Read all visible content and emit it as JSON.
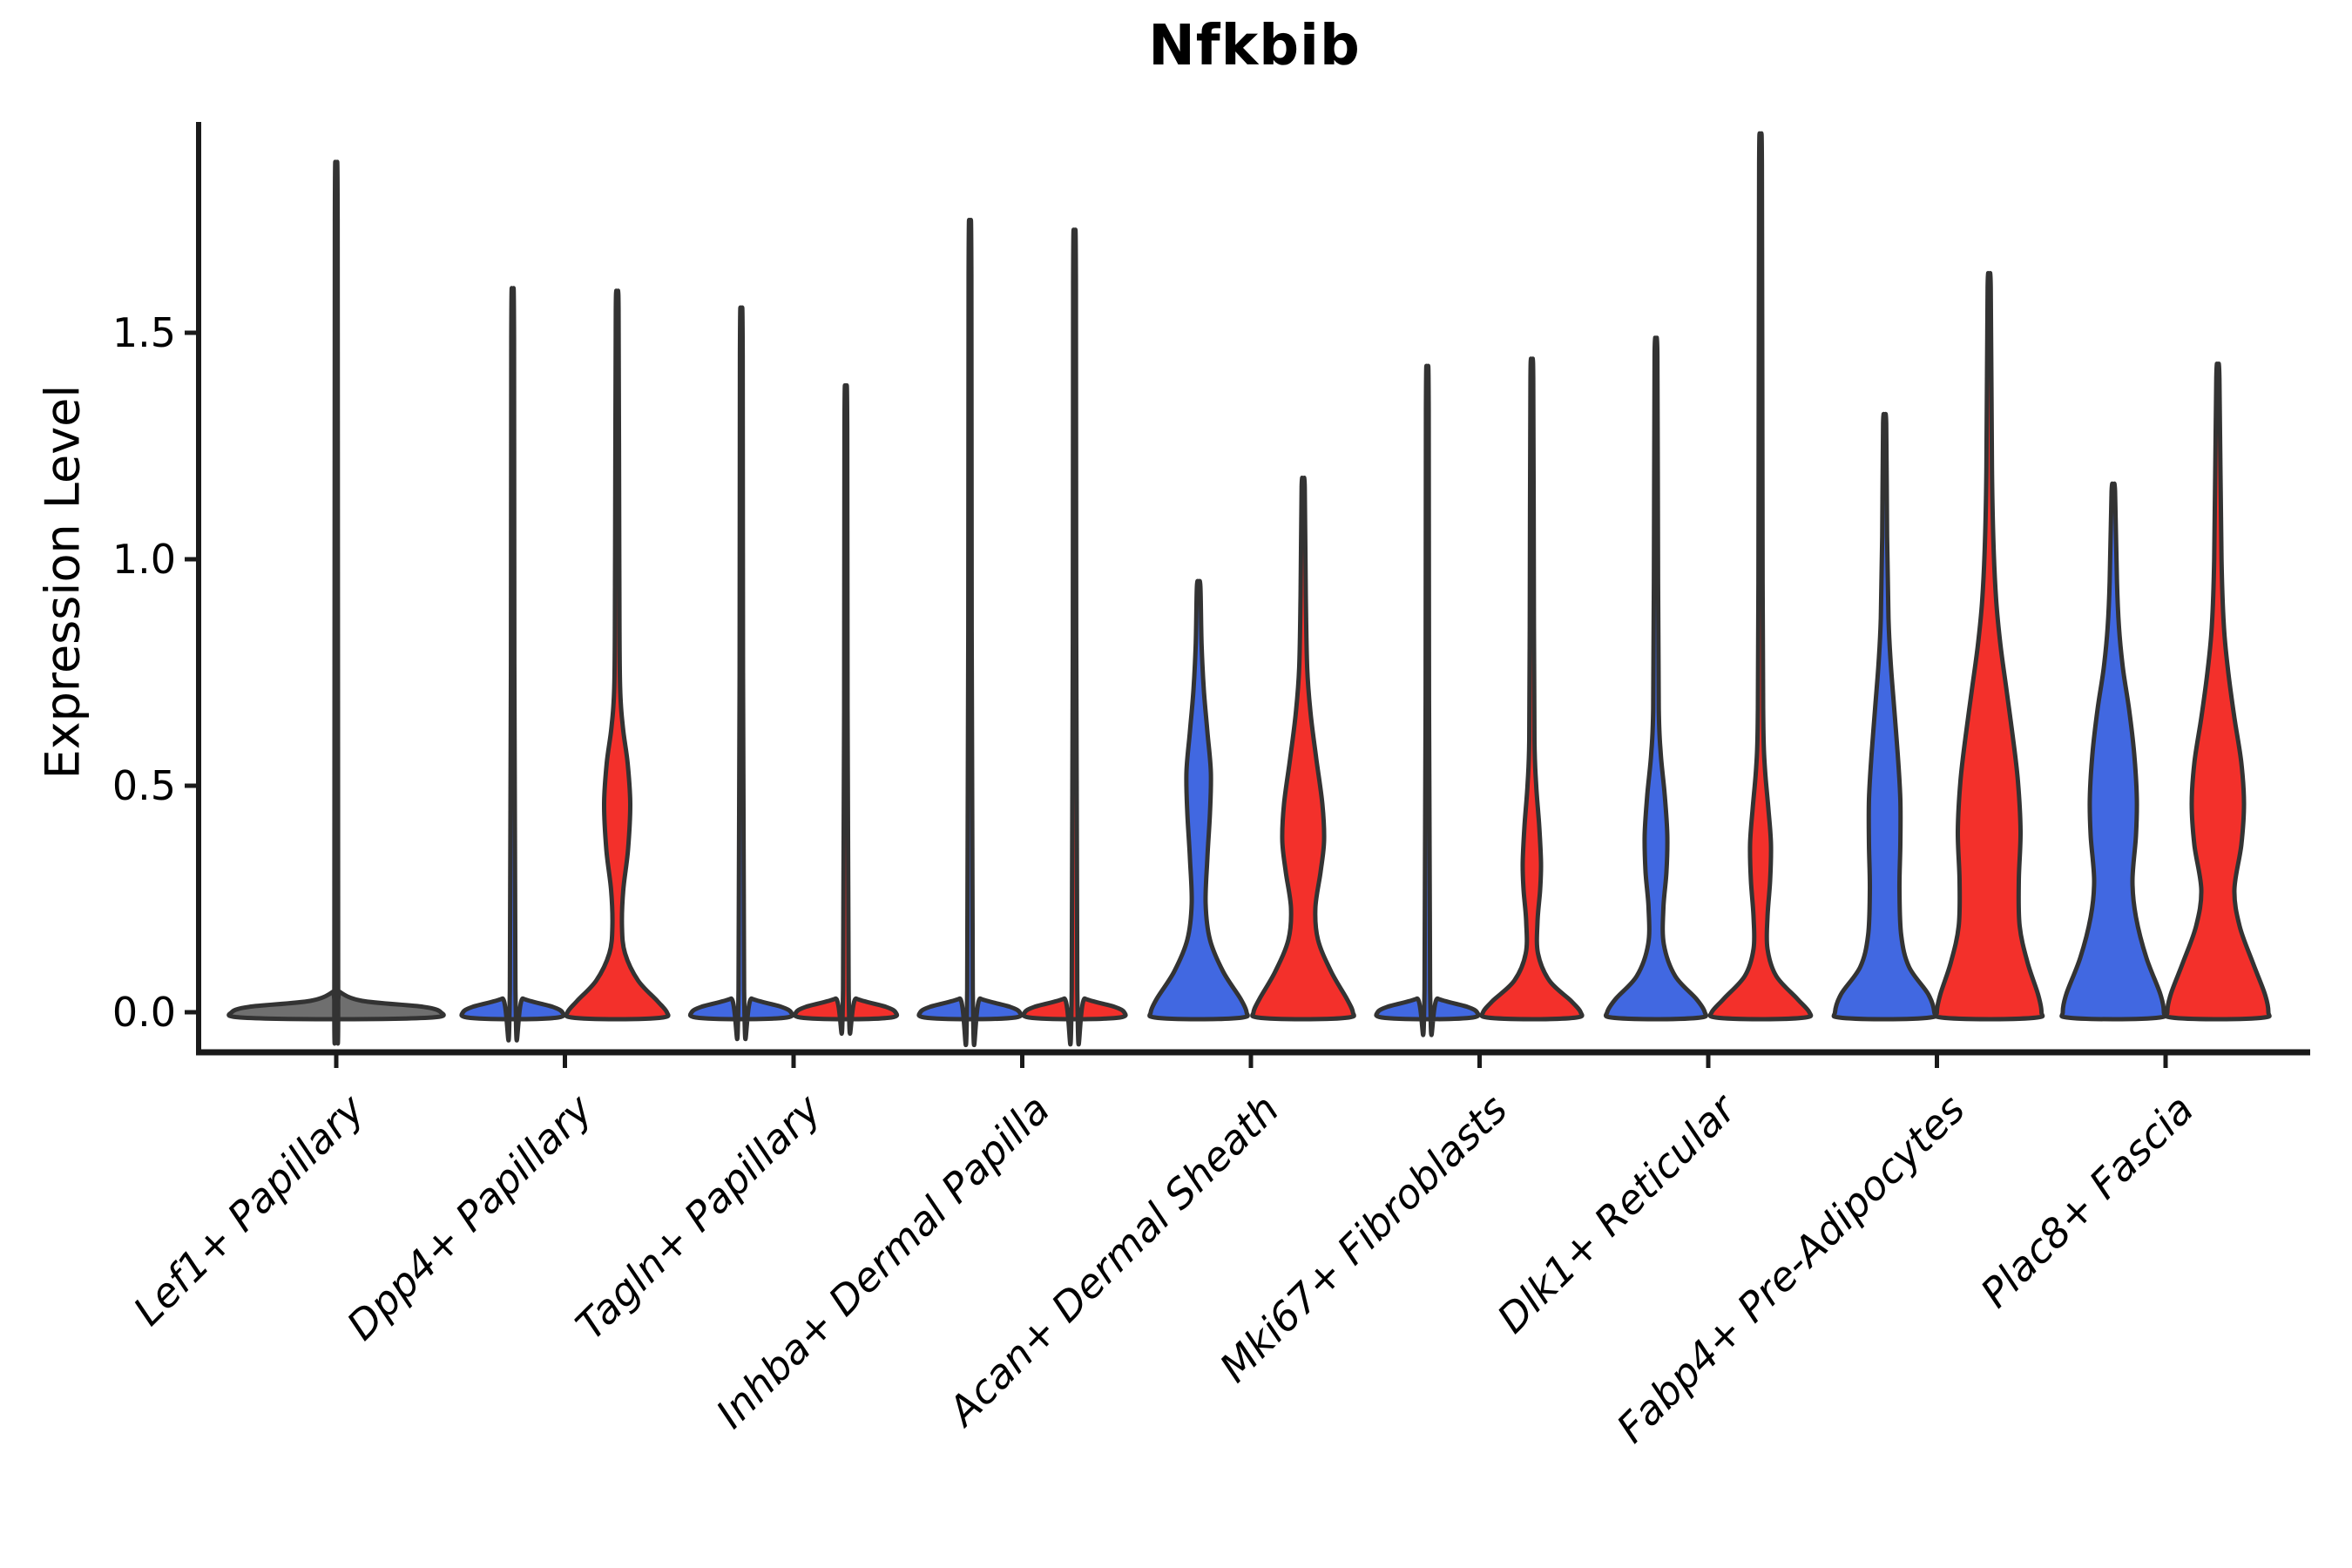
{
  "title": "Nfkbib",
  "chart_data": {
    "type": "violin",
    "title": "Nfkbib",
    "xlabel": "",
    "ylabel": "Expression Level",
    "ylim": [
      0,
      1.96
    ],
    "yticks": [
      "0.0",
      "0.5",
      "1.0",
      "1.5"
    ],
    "ytick_values": [
      0.0,
      0.5,
      1.0,
      1.5
    ],
    "grid": false,
    "legend_position": "none",
    "colors": {
      "blue": "#4168E1",
      "red": "#F3302B",
      "single": "#6f6f6f",
      "outline": "#333333",
      "axis": "#1a1a1a",
      "text": "#000000"
    },
    "categories": [
      "Lef1+ Papillary",
      "Dpp4+ Papillary",
      "Tagln+ Papillary",
      "Inhba+ Dermal Papilla",
      "Acan+ Dermal Sheath",
      "Mki67+ Fibroblasts",
      "Dlk1+ Reticular",
      "Fabp4+ Pre-Adipocytes",
      "Plac8+ Fascia"
    ],
    "violins": [
      {
        "category_index": 0,
        "position": "center",
        "color": "single",
        "max": 1.75,
        "profile": [
          [
            0,
            120
          ],
          [
            0.012,
            100
          ],
          [
            0.025,
            30
          ],
          [
            0.045,
            4
          ],
          [
            0.06,
            2.2
          ],
          [
            1.75,
            1.6
          ]
        ]
      },
      {
        "category_index": 1,
        "position": "left",
        "color": "blue",
        "max": 1.49,
        "profile": [
          [
            0,
            57
          ],
          [
            0.012,
            46
          ],
          [
            0.03,
            12
          ],
          [
            0.05,
            3.2
          ],
          [
            1.49,
            1.6
          ]
        ]
      },
      {
        "category_index": 1,
        "position": "right",
        "color": "red",
        "max": 1.55,
        "profile": [
          [
            0,
            57
          ],
          [
            0.025,
            46
          ],
          [
            0.07,
            24
          ],
          [
            0.13,
            9
          ],
          [
            0.19,
            5.5
          ],
          [
            0.27,
            7
          ],
          [
            0.36,
            12.5
          ],
          [
            0.46,
            15
          ],
          [
            0.55,
            12
          ],
          [
            0.63,
            6.5
          ],
          [
            0.73,
            3.2
          ],
          [
            1.0,
            2.4
          ],
          [
            1.55,
            1.6
          ]
        ]
      },
      {
        "category_index": 2,
        "position": "left",
        "color": "blue",
        "max": 1.45,
        "profile": [
          [
            0,
            57
          ],
          [
            0.012,
            46
          ],
          [
            0.03,
            12
          ],
          [
            0.05,
            3.2
          ],
          [
            1.45,
            1.6
          ]
        ]
      },
      {
        "category_index": 2,
        "position": "right",
        "color": "red",
        "max": 1.29,
        "profile": [
          [
            0,
            57
          ],
          [
            0.012,
            46
          ],
          [
            0.03,
            12
          ],
          [
            0.05,
            3.2
          ],
          [
            1.29,
            1.6
          ]
        ]
      },
      {
        "category_index": 3,
        "position": "left",
        "color": "blue",
        "max": 1.63,
        "profile": [
          [
            0,
            57
          ],
          [
            0.012,
            46
          ],
          [
            0.03,
            12
          ],
          [
            0.05,
            3.2
          ],
          [
            1.63,
            1.6
          ]
        ]
      },
      {
        "category_index": 3,
        "position": "right",
        "color": "red",
        "max": 1.61,
        "profile": [
          [
            0,
            57
          ],
          [
            0.012,
            46
          ],
          [
            0.03,
            12
          ],
          [
            0.05,
            3.2
          ],
          [
            1.61,
            1.6
          ]
        ]
      },
      {
        "category_index": 4,
        "position": "left",
        "color": "blue",
        "max": 0.94,
        "profile": [
          [
            0,
            55
          ],
          [
            0.03,
            48
          ],
          [
            0.09,
            28
          ],
          [
            0.16,
            13
          ],
          [
            0.24,
            8
          ],
          [
            0.34,
            10
          ],
          [
            0.44,
            13
          ],
          [
            0.53,
            14
          ],
          [
            0.62,
            10
          ],
          [
            0.71,
            6
          ],
          [
            0.81,
            3.4
          ],
          [
            0.94,
            2
          ]
        ]
      },
      {
        "category_index": 4,
        "position": "right",
        "color": "red",
        "max": 1.16,
        "profile": [
          [
            0,
            57
          ],
          [
            0.03,
            50
          ],
          [
            0.09,
            32
          ],
          [
            0.16,
            17
          ],
          [
            0.23,
            14
          ],
          [
            0.31,
            20
          ],
          [
            0.38,
            24
          ],
          [
            0.46,
            22
          ],
          [
            0.56,
            15
          ],
          [
            0.66,
            8.5
          ],
          [
            0.76,
            4.6
          ],
          [
            0.92,
            3
          ],
          [
            1.16,
            1.8
          ]
        ]
      },
      {
        "category_index": 5,
        "position": "left",
        "color": "blue",
        "max": 1.33,
        "profile": [
          [
            0,
            57
          ],
          [
            0.012,
            46
          ],
          [
            0.03,
            12
          ],
          [
            0.05,
            3.2
          ],
          [
            1.33,
            1.6
          ]
        ]
      },
      {
        "category_index": 5,
        "position": "right",
        "color": "red",
        "max": 1.4,
        "profile": [
          [
            0,
            56
          ],
          [
            0.025,
            45
          ],
          [
            0.07,
            20
          ],
          [
            0.13,
            7
          ],
          [
            0.2,
            6.5
          ],
          [
            0.27,
            9.5
          ],
          [
            0.33,
            10.5
          ],
          [
            0.41,
            8.5
          ],
          [
            0.5,
            5
          ],
          [
            0.6,
            3
          ],
          [
            0.85,
            2.4
          ],
          [
            1.4,
            1.6
          ]
        ]
      },
      {
        "category_index": 6,
        "position": "left",
        "color": "blue",
        "max": 1.45,
        "profile": [
          [
            0,
            56
          ],
          [
            0.03,
            46
          ],
          [
            0.08,
            22
          ],
          [
            0.15,
            9
          ],
          [
            0.23,
            8.5
          ],
          [
            0.31,
            12
          ],
          [
            0.39,
            13
          ],
          [
            0.48,
            10
          ],
          [
            0.57,
            5.5
          ],
          [
            0.67,
            3.2
          ],
          [
            0.95,
            2.4
          ],
          [
            1.45,
            1.6
          ]
        ]
      },
      {
        "category_index": 6,
        "position": "right",
        "color": "red",
        "max": 1.87,
        "profile": [
          [
            0,
            56
          ],
          [
            0.03,
            42
          ],
          [
            0.08,
            18
          ],
          [
            0.14,
            8
          ],
          [
            0.21,
            8
          ],
          [
            0.29,
            11
          ],
          [
            0.37,
            12
          ],
          [
            0.45,
            9
          ],
          [
            0.54,
            5
          ],
          [
            0.64,
            3.2
          ],
          [
            0.95,
            2.4
          ],
          [
            1.87,
            1.6
          ]
        ]
      },
      {
        "category_index": 7,
        "position": "left",
        "color": "blue",
        "max": 1.3,
        "profile": [
          [
            0,
            57
          ],
          [
            0.04,
            50
          ],
          [
            0.1,
            28
          ],
          [
            0.17,
            19
          ],
          [
            0.27,
            17
          ],
          [
            0.37,
            18
          ],
          [
            0.47,
            18
          ],
          [
            0.57,
            15
          ],
          [
            0.67,
            11
          ],
          [
            0.77,
            7
          ],
          [
            0.87,
            4.4
          ],
          [
            1.05,
            2.8
          ],
          [
            1.3,
            1.8
          ]
        ]
      },
      {
        "category_index": 7,
        "position": "right",
        "color": "red",
        "max": 1.6,
        "profile": [
          [
            0,
            60
          ],
          [
            0.04,
            56
          ],
          [
            0.11,
            44
          ],
          [
            0.19,
            35
          ],
          [
            0.29,
            34
          ],
          [
            0.4,
            36
          ],
          [
            0.51,
            33
          ],
          [
            0.61,
            27
          ],
          [
            0.71,
            20
          ],
          [
            0.81,
            13
          ],
          [
            0.91,
            8
          ],
          [
            1.03,
            5
          ],
          [
            1.2,
            3.2
          ],
          [
            1.6,
            1.8
          ]
        ]
      },
      {
        "category_index": 8,
        "position": "left",
        "color": "blue",
        "max": 1.15,
        "profile": [
          [
            0,
            58
          ],
          [
            0.04,
            54
          ],
          [
            0.12,
            38
          ],
          [
            0.21,
            26
          ],
          [
            0.29,
            22
          ],
          [
            0.39,
            26
          ],
          [
            0.47,
            27
          ],
          [
            0.57,
            24
          ],
          [
            0.67,
            18
          ],
          [
            0.76,
            11
          ],
          [
            0.85,
            6.5
          ],
          [
            0.95,
            4.2
          ],
          [
            1.15,
            2
          ]
        ]
      },
      {
        "category_index": 8,
        "position": "right",
        "color": "red",
        "max": 1.4,
        "profile": [
          [
            0,
            58
          ],
          [
            0.04,
            54
          ],
          [
            0.11,
            40
          ],
          [
            0.19,
            25
          ],
          [
            0.27,
            19
          ],
          [
            0.37,
            27
          ],
          [
            0.46,
            30
          ],
          [
            0.55,
            27
          ],
          [
            0.65,
            19
          ],
          [
            0.75,
            12
          ],
          [
            0.85,
            7
          ],
          [
            1.0,
            4.2
          ],
          [
            1.4,
            1.8
          ]
        ]
      }
    ]
  }
}
